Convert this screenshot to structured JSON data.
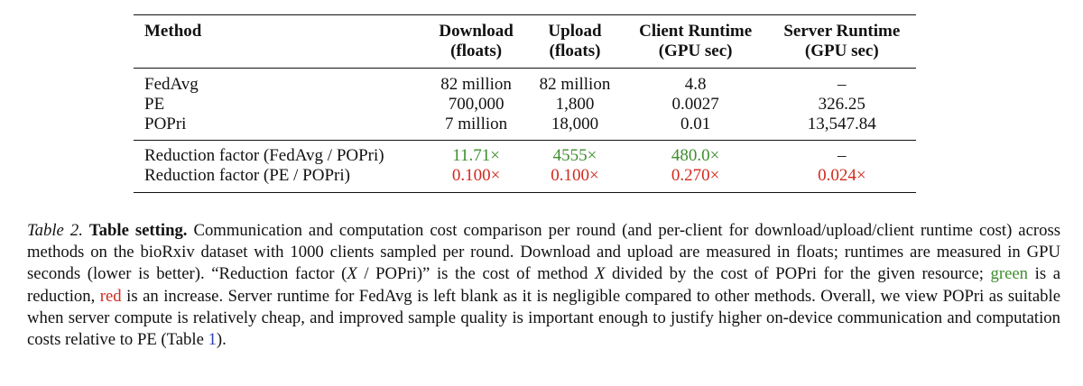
{
  "table": {
    "headers": [
      {
        "line1": "Method",
        "line2": ""
      },
      {
        "line1": "Download",
        "line2": "(floats)"
      },
      {
        "line1": "Upload",
        "line2": "(floats)"
      },
      {
        "line1": "Client Runtime",
        "line2": "(GPU sec)"
      },
      {
        "line1": "Server Runtime",
        "line2": "(GPU sec)"
      }
    ],
    "rows": [
      {
        "method": "FedAvg",
        "download": "82 million",
        "upload": "82 million",
        "client": "4.8",
        "server": "–"
      },
      {
        "method": "PE",
        "download": "700,000",
        "upload": "1,800",
        "client": "0.0027",
        "server": "326.25"
      },
      {
        "method": "POPri",
        "download": "7 million",
        "upload": "18,000",
        "client": "0.01",
        "server": "13,547.84"
      }
    ],
    "factors": [
      {
        "method": "Reduction factor (FedAvg / POPri)",
        "download": "11.71×",
        "upload": "4555×",
        "client": "480.0×",
        "server": "–"
      },
      {
        "method": "Reduction factor (PE / POPri)",
        "download": "0.100×",
        "upload": "0.100×",
        "client": "0.270×",
        "server": "0.024×"
      }
    ],
    "colors": {
      "green": "#3e8d2f",
      "red": "#d02a1e",
      "link": "#2b3fb6"
    }
  },
  "caption": {
    "label": "Table 2.",
    "title": "Table setting.",
    "s1": "Communication and computation cost comparison per round (and per-client for download/upload/client runtime cost) across methods on the bioRxiv dataset with 1000 clients sampled per round. Download and upload are measured in floats; runtimes are measured in GPU seconds (lower is better). “Reduction factor (",
    "x1": "X",
    "s2": " / POPri)” is the cost of method ",
    "x2": "X",
    "s3": " divided by the cost of POPri for the given resource; ",
    "green_word": "green",
    "s4": " is a reduction, ",
    "red_word": "red",
    "s5": " is an increase. Server runtime for FedAvg is left blank as it is negligible compared to other methods. Overall, we view POPri as suitable when server compute is relatively cheap, and improved sample quality is important enough to justify higher on-device communication and computation costs relative to PE (Table ",
    "ref": "1",
    "s6": ")."
  }
}
